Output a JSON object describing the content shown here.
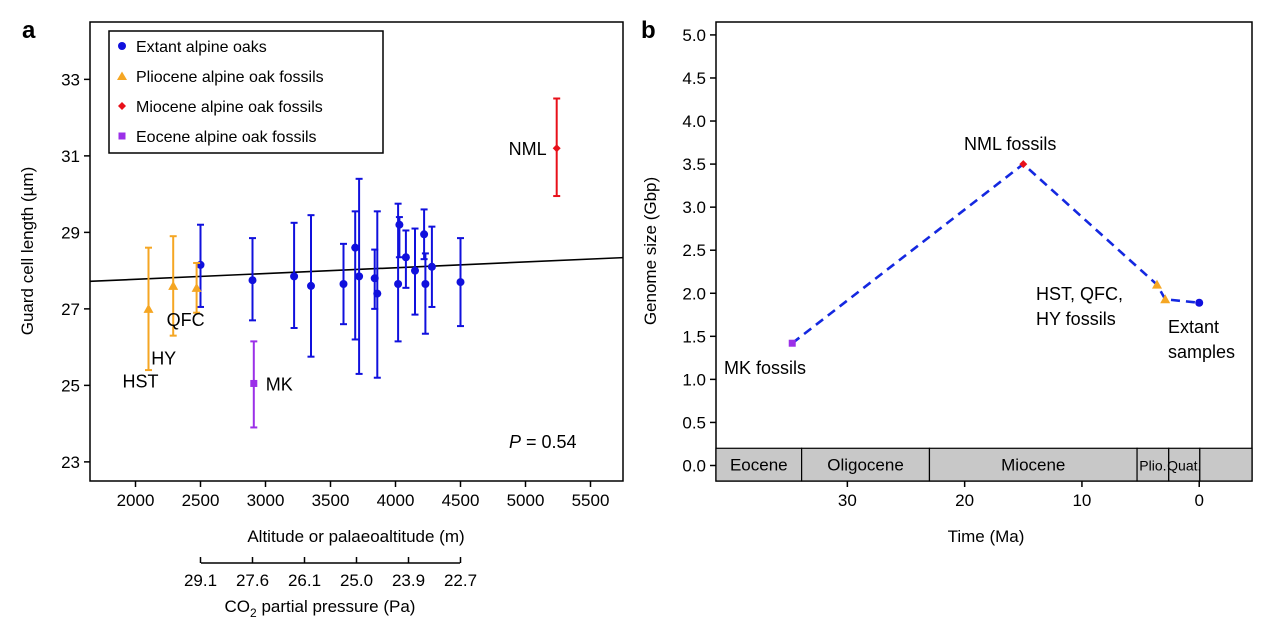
{
  "chart_data": [
    {
      "panel_label": "a",
      "type": "scatter",
      "xlabel": "Altitude or palaeoaltitude (m)",
      "ylabel": "Guard cell length (µm)",
      "xlim": [
        1650,
        5750
      ],
      "ylim": [
        22.5,
        34.5
      ],
      "x_ticks": [
        2000,
        2500,
        3000,
        3500,
        4000,
        4500,
        5000,
        5500
      ],
      "y_ticks": [
        23,
        25,
        27,
        29,
        31,
        33
      ],
      "secondary_axis": {
        "label_prefix": "CO",
        "label_sub": "2",
        "label_suffix": " partial pressure (Pa)",
        "ticks": [
          {
            "at_altitude": 2500,
            "label": "29.1"
          },
          {
            "at_altitude": 2900,
            "label": "27.6"
          },
          {
            "at_altitude": 3300,
            "label": "26.1"
          },
          {
            "at_altitude": 3700,
            "label": "25.0"
          },
          {
            "at_altitude": 4100,
            "label": "23.9"
          },
          {
            "at_altitude": 4500,
            "label": "22.7"
          }
        ]
      },
      "regression_line": {
        "x": [
          1650,
          5750
        ],
        "y": [
          27.72,
          28.34
        ]
      },
      "p_value": {
        "italic": "P",
        "rest": " = 0.54"
      },
      "legend": [
        {
          "name": "Extant alpine oaks",
          "color": "#1010dd",
          "marker": "circle"
        },
        {
          "name": "Pliocene alpine oak fossils",
          "color": "#f5a623",
          "marker": "triangle"
        },
        {
          "name": "Miocene alpine oak fossils",
          "color": "#e8101a",
          "marker": "diamond"
        },
        {
          "name": "Eocene alpine oak fossils",
          "color": "#9b30e8",
          "marker": "square"
        }
      ],
      "series": [
        {
          "name": "Extant alpine oaks",
          "color": "#1010dd",
          "marker": "circle",
          "points": [
            {
              "x": 2500,
              "y": 28.15,
              "lo": 27.05,
              "hi": 29.2
            },
            {
              "x": 2900,
              "y": 27.75,
              "lo": 26.7,
              "hi": 28.85
            },
            {
              "x": 3220,
              "y": 27.85,
              "lo": 26.5,
              "hi": 29.25
            },
            {
              "x": 3350,
              "y": 27.6,
              "lo": 25.75,
              "hi": 29.45
            },
            {
              "x": 3600,
              "y": 27.65,
              "lo": 26.6,
              "hi": 28.7
            },
            {
              "x": 3690,
              "y": 28.6,
              "lo": 26.2,
              "hi": 29.55
            },
            {
              "x": 3720,
              "y": 27.85,
              "lo": 25.3,
              "hi": 30.4
            },
            {
              "x": 3840,
              "y": 27.8,
              "lo": 27.0,
              "hi": 28.55
            },
            {
              "x": 3860,
              "y": 27.4,
              "lo": 25.2,
              "hi": 29.55
            },
            {
              "x": 4020,
              "y": 27.65,
              "lo": 26.15,
              "hi": 29.75
            },
            {
              "x": 4030,
              "y": 29.2,
              "lo": 28.35,
              "hi": 29.4
            },
            {
              "x": 4080,
              "y": 28.35,
              "lo": 27.55,
              "hi": 29.05
            },
            {
              "x": 4150,
              "y": 28.0,
              "lo": 26.85,
              "hi": 29.1
            },
            {
              "x": 4220,
              "y": 28.95,
              "lo": 28.3,
              "hi": 29.6
            },
            {
              "x": 4230,
              "y": 27.65,
              "lo": 26.35,
              "hi": 28.45
            },
            {
              "x": 4280,
              "y": 28.1,
              "lo": 27.05,
              "hi": 29.15
            },
            {
              "x": 4500,
              "y": 27.7,
              "lo": 26.55,
              "hi": 28.85
            }
          ]
        },
        {
          "name": "Pliocene alpine oak fossils",
          "color": "#f5a623",
          "marker": "triangle",
          "points": [
            {
              "x": 2100,
              "y": 27.0,
              "lo": 25.4,
              "hi": 28.6,
              "label": "HST"
            },
            {
              "x": 2290,
              "y": 27.6,
              "lo": 26.3,
              "hi": 28.9,
              "label": "HY"
            },
            {
              "x": 2470,
              "y": 27.55,
              "lo": 26.9,
              "hi": 28.2,
              "label": "QFC"
            }
          ]
        },
        {
          "name": "Miocene alpine oak fossils",
          "color": "#e8101a",
          "marker": "diamond",
          "points": [
            {
              "x": 5240,
              "y": 31.2,
              "lo": 29.95,
              "hi": 32.5,
              "label": "NML"
            }
          ]
        },
        {
          "name": "Eocene alpine oak fossils",
          "color": "#9b30e8",
          "marker": "square",
          "points": [
            {
              "x": 2910,
              "y": 25.05,
              "lo": 23.9,
              "hi": 26.15,
              "label": "MK"
            }
          ]
        }
      ]
    },
    {
      "panel_label": "b",
      "type": "line",
      "xlabel": "Time (Ma)",
      "ylabel": "Genome size (Gbp)",
      "xlim": [
        41.2,
        -4.5
      ],
      "ylim": [
        -0.18,
        5.15
      ],
      "x_ticks": [
        30,
        20,
        10,
        0
      ],
      "y_ticks": [
        "0.0",
        "0.5",
        "1.0",
        "1.5",
        "2.0",
        "2.5",
        "3.0",
        "3.5",
        "4.0",
        "4.5",
        "5.0"
      ],
      "series": [
        {
          "name": "Genome size trajectory",
          "color": "#1428e0",
          "line_style": "dashed",
          "points": [
            {
              "x": 34.7,
              "y": 1.42,
              "marker": "square",
              "color": "#9b30e8"
            },
            {
              "x": 15.0,
              "y": 3.5,
              "marker": "diamond",
              "color": "#e8101a"
            },
            {
              "x": 3.6,
              "y": 2.1,
              "marker": "triangle",
              "color": "#f5a623"
            },
            {
              "x": 2.9,
              "y": 1.93,
              "marker": "triangle",
              "color": "#f5a623"
            },
            {
              "x": 0.0,
              "y": 1.89,
              "marker": "circle",
              "color": "#1010dd"
            }
          ]
        }
      ],
      "annotations": [
        {
          "lines": [
            "MK fossils"
          ]
        },
        {
          "lines": [
            "NML fossils"
          ]
        },
        {
          "lines": [
            "HST, QFC,",
            "HY fossils"
          ]
        },
        {
          "lines": [
            "Extant",
            "samples"
          ]
        }
      ],
      "epochs": [
        {
          "name": "Eocene",
          "start": 41.2,
          "end": 33.9
        },
        {
          "name": "Oligocene",
          "start": 33.9,
          "end": 23.0
        },
        {
          "name": "Miocene",
          "start": 23.0,
          "end": 5.3
        },
        {
          "name": "Plio.",
          "start": 5.3,
          "end": 2.6
        },
        {
          "name": "Quat.",
          "start": 2.6,
          "end": -0.05
        },
        {
          "name": "",
          "start": -0.05,
          "end": -4.5
        }
      ],
      "epoch_band_y": [
        -0.18,
        0.2
      ]
    }
  ]
}
